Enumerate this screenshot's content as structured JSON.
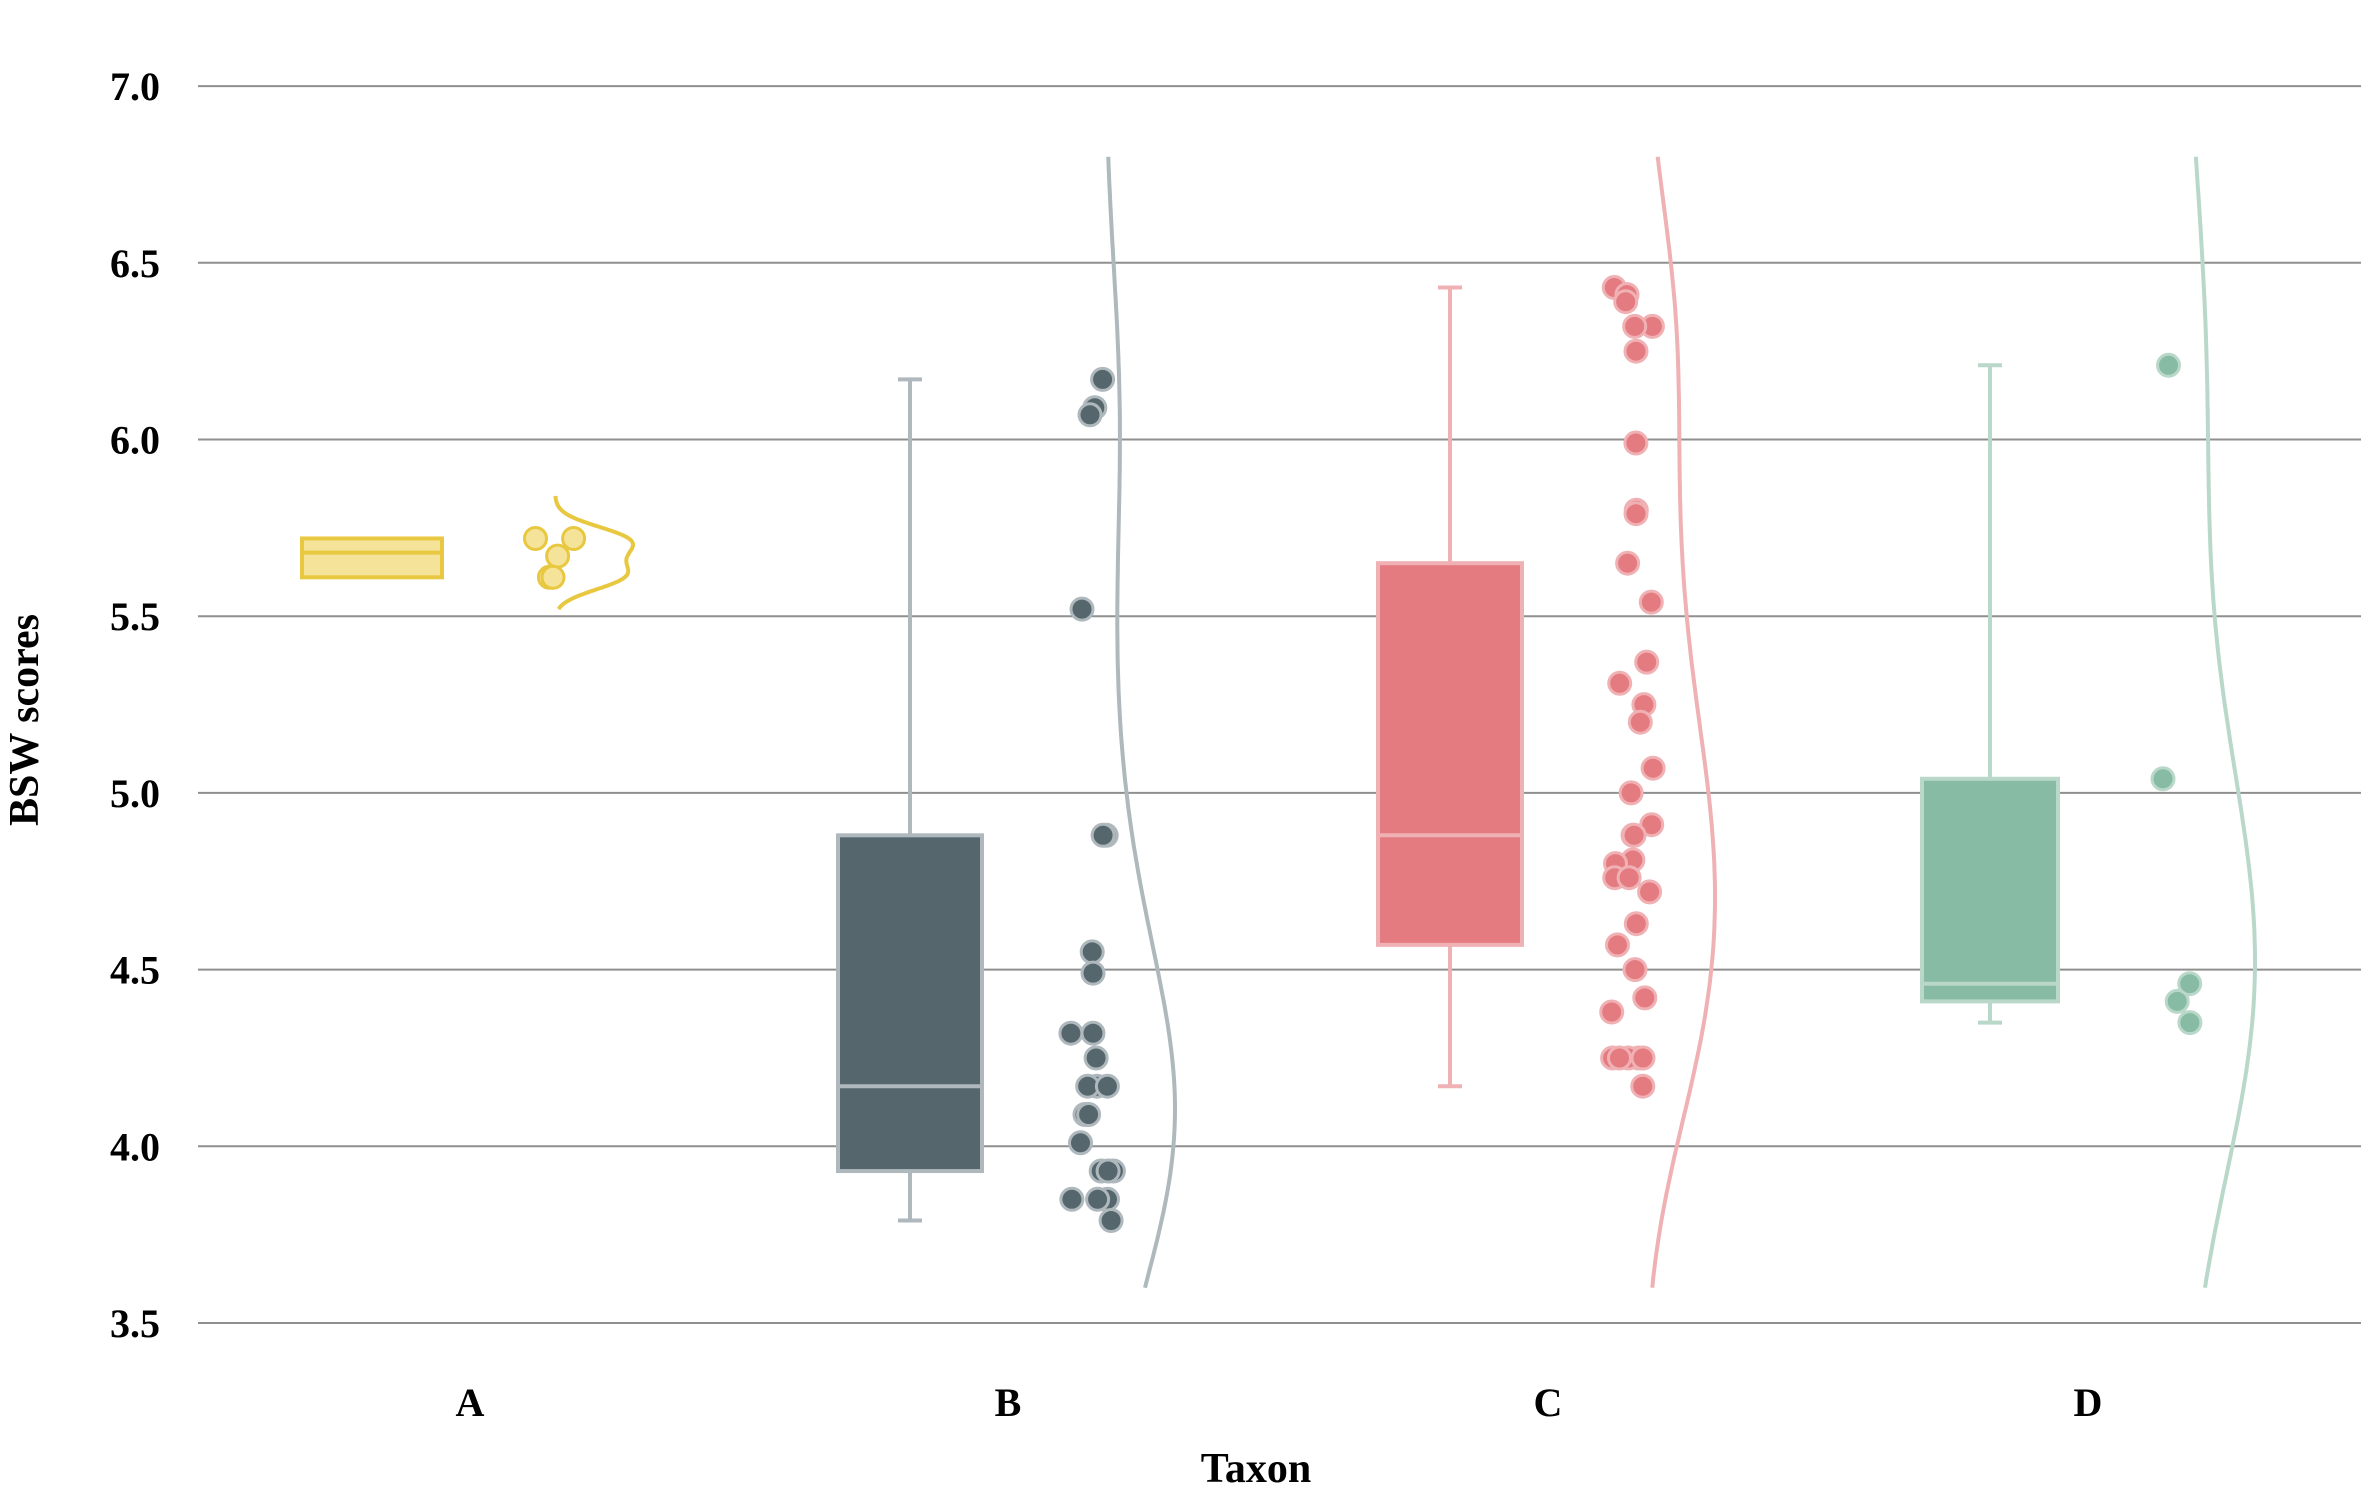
{
  "chart_data": {
    "type": "raincloud",
    "title": "",
    "xlabel": "Taxon",
    "ylabel": "BSW scores",
    "ylim": [
      3.5,
      7.0
    ],
    "yticks": [
      "3.5",
      "4.0",
      "4.5",
      "5.0",
      "5.5",
      "6.0",
      "6.5",
      "7.0"
    ],
    "grid": "horizontal",
    "categories": [
      "A",
      "B",
      "C",
      "D"
    ],
    "series": [
      {
        "category": "A",
        "color": "#F5E39A",
        "edge": "#E8C840",
        "box": {
          "min": 5.61,
          "q1": 5.61,
          "median": 5.68,
          "q3": 5.72,
          "max": 5.72
        },
        "points": [
          5.72,
          5.72,
          5.67,
          5.61,
          5.61
        ],
        "density_range": [
          5.52,
          5.84
        ]
      },
      {
        "category": "B",
        "color": "#55676D",
        "edge": "#AEB8BD",
        "box": {
          "min": 3.79,
          "q1": 3.93,
          "median": 4.17,
          "q3": 4.88,
          "max": 6.17
        },
        "points": [
          6.17,
          6.09,
          6.07,
          5.52,
          4.88,
          4.88,
          4.55,
          4.49,
          4.32,
          4.32,
          4.25,
          4.17,
          4.17,
          4.17,
          4.09,
          4.09,
          4.01,
          3.93,
          3.93,
          3.93,
          3.85,
          3.85,
          3.85,
          3.79
        ],
        "density_range": [
          3.6,
          6.8
        ]
      },
      {
        "category": "C",
        "color": "#E47B80",
        "edge": "#F0B1B4",
        "box": {
          "min": 4.17,
          "q1": 4.57,
          "median": 4.88,
          "q3": 5.65,
          "max": 6.43
        },
        "points": [
          6.43,
          6.41,
          6.39,
          6.32,
          6.32,
          6.25,
          5.99,
          5.8,
          5.79,
          5.65,
          5.54,
          5.37,
          5.31,
          5.25,
          5.2,
          5.07,
          5.0,
          4.91,
          4.88,
          4.88,
          4.81,
          4.8,
          4.76,
          4.76,
          4.72,
          4.63,
          4.57,
          4.5,
          4.42,
          4.38,
          4.25,
          4.25,
          4.25,
          4.25,
          4.25,
          4.17
        ],
        "density_range": [
          3.6,
          6.8
        ]
      },
      {
        "category": "D",
        "color": "#88BBA3",
        "edge": "#BAD8CA",
        "box": {
          "min": 4.35,
          "q1": 4.41,
          "median": 4.46,
          "q3": 5.04,
          "max": 6.21
        },
        "points": [
          6.21,
          5.04,
          4.46,
          4.41,
          4.35
        ],
        "density_range": [
          3.6,
          6.8
        ]
      }
    ]
  }
}
